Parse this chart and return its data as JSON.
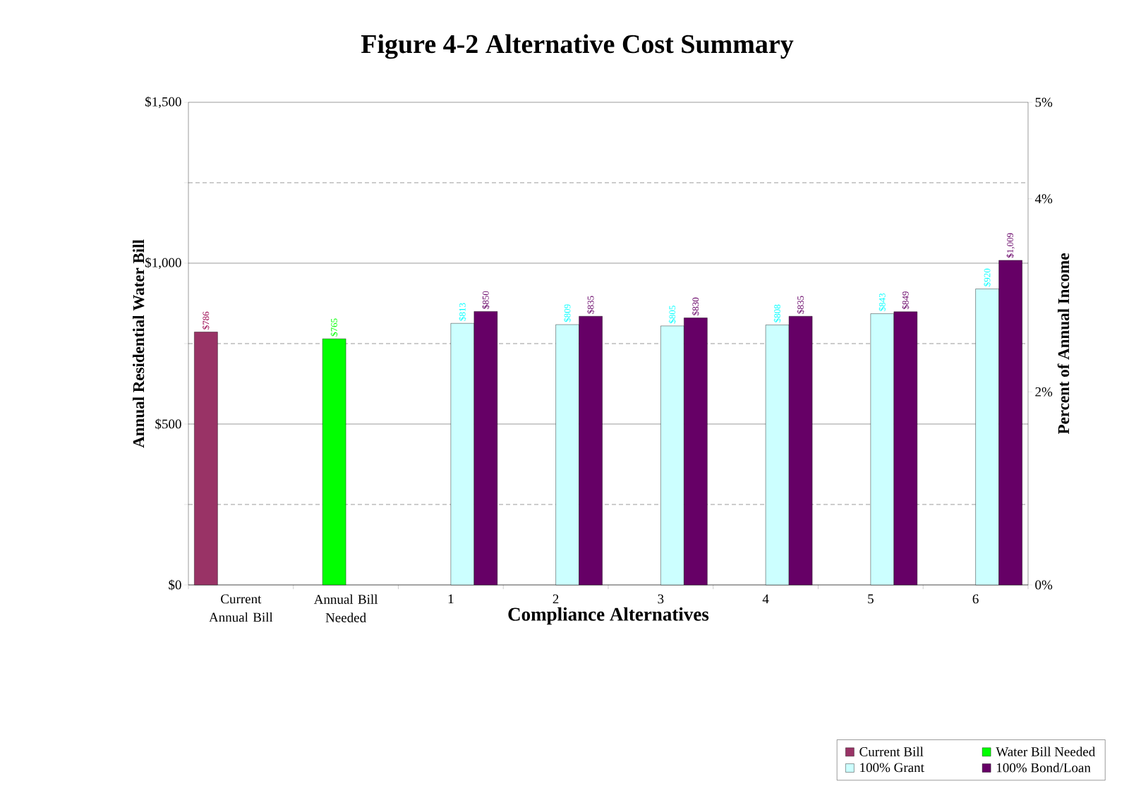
{
  "chart_data": {
    "type": "bar",
    "title": "**Figure 4-2   Alternative Cost Summary**",
    "xlabel": "Compliance Alternatives",
    "ylabel": "Annual Residential Water Bill",
    "y2label": "Percent of Annual Income",
    "categories": [
      "Current Annual Bill",
      "Annual Bill Needed",
      "1",
      "2",
      "3",
      "4",
      "5",
      "6"
    ],
    "series": [
      {
        "name": "Current Bill",
        "color": "#993366",
        "values": [
          786,
          null,
          null,
          null,
          null,
          null,
          null,
          null
        ],
        "value_labels": [
          "$786",
          null,
          null,
          null,
          null,
          null,
          null,
          null
        ]
      },
      {
        "name": "Water Bill Needed",
        "color": "#00ff00",
        "values": [
          null,
          765,
          null,
          null,
          null,
          null,
          null,
          null
        ],
        "value_labels": [
          null,
          "$765",
          null,
          null,
          null,
          null,
          null,
          null
        ]
      },
      {
        "name": "100% Grant",
        "color": "#ccffff",
        "values": [
          null,
          null,
          813,
          809,
          805,
          808,
          843,
          920
        ],
        "value_labels": [
          null,
          null,
          "$813",
          "$809",
          "$805",
          "$808",
          "$843",
          "$920"
        ]
      },
      {
        "name": "100% Bond/Loan",
        "color": "#660066",
        "values": [
          null,
          null,
          850,
          835,
          830,
          835,
          849,
          1009
        ],
        "value_labels": [
          null,
          null,
          "$850",
          "$835",
          "$830",
          "$835",
          "$849",
          "$1,009"
        ]
      }
    ],
    "ylim": [
      0,
      1500
    ],
    "yticks": [
      {
        "value": 0,
        "label": "$0"
      },
      {
        "value": 500,
        "label": "$500"
      },
      {
        "value": 1000,
        "label": "$1,000"
      },
      {
        "value": 1500,
        "label": "$1,500"
      }
    ],
    "y2lim": [
      0,
      5
    ],
    "y2ticks": [
      {
        "value": 0,
        "label": "0%"
      },
      {
        "value": 2,
        "label": "2%"
      },
      {
        "value": 4,
        "label": "4%"
      },
      {
        "value": 5,
        "label": "5%"
      }
    ],
    "grid": "y",
    "legend": "bottom right"
  }
}
